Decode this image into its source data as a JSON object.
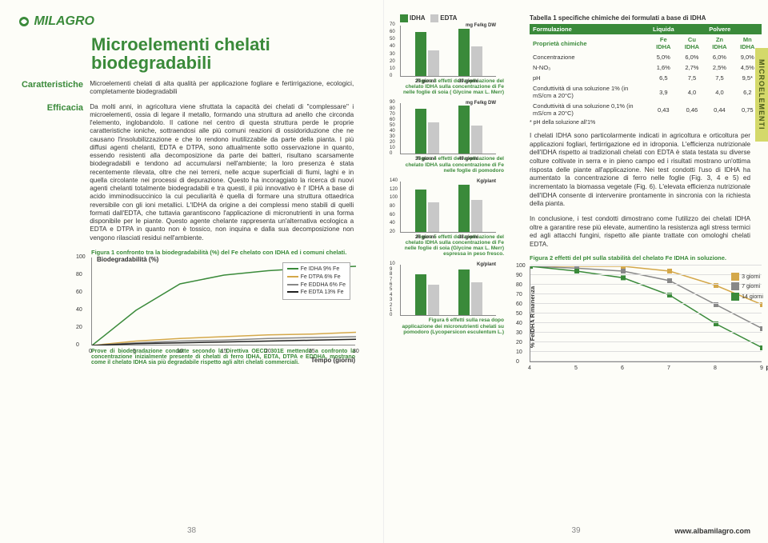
{
  "brand": "MILAGRO",
  "title": "Microelementi chelati biodegradabili",
  "sections": {
    "caratteristiche": {
      "label": "Caratteristiche",
      "text": "Microelementi chelati di alta qualità per applicazione fogliare e fertirrigazione, ecologici, completamente biodegradabili"
    },
    "efficacia": {
      "label": "Efficacia",
      "text": "Da molti anni, in agricoltura viene sfruttata la capacità dei chelati di \"complessare\" i microelementi, ossia di legare il metallo, formando una struttura ad anello che circonda l'elemento, inglobandolo. Il catione nel centro di questa struttura perde le proprie caratteristiche ioniche, sottraendosi alle più comuni reazioni di ossidoriduzione che ne causano l'insolubilizzazione e che lo rendono inutilizzabile da parte della pianta. I più diffusi agenti chelanti, EDTA e DTPA, sono attualmente sotto osservazione in quanto, essendo resistenti alla decomposizione da parte dei batteri, risultano scarsamente biodegradabili e tendono ad accumularsi nell'ambiente; la loro presenza è stata recentemente rilevata, oltre che nei terreni, nelle acque superficiali di fiumi, laghi e in quella circolante nei processi di depurazione. Questo ha incoraggiato la ricerca di nuovi agenti chelanti totalmente biodegradabili e tra questi, il più innovativo è l' IDHA a base di acido imminodisuccinico la cui peculiarità è quella di formare una struttura ottaedrica reversibile con gli ioni metallici. L'IDHA da origine a dei complessi meno stabili di quelli formati dall'EDTA, che tuttavia garantiscono l'applicazione di micronutrienti in una forma disponibile per le piante. Questo agente chelante rappresenta un'alternativa ecologica a EDTA e DTPA in quanto non è tossico, non inquina e dalla sua decomposizione non vengono rilasciati residui nell'ambiente."
    }
  },
  "fig1": {
    "caption": "Figura 1 confronto tra la biodegradabilità (%) del Fe chelato con IDHA ed i comuni chelati.",
    "ylabel": "Biodegradabilità (%)",
    "xlabel": "Tempo (giorni)",
    "yticks": [
      0,
      20,
      40,
      60,
      80,
      100
    ],
    "xticks": [
      0,
      5,
      10,
      15,
      20,
      25,
      30
    ],
    "series": [
      {
        "name": "Fe IDHA 9% Fe",
        "color": "#3a8a3a",
        "values": [
          0,
          40,
          70,
          80,
          85,
          88,
          90
        ]
      },
      {
        "name": "Fe DTPA 6% Fe",
        "color": "#d4a84a",
        "values": [
          0,
          5,
          8,
          10,
          12,
          13,
          15
        ]
      },
      {
        "name": "Fe EDDHA 6% Fe",
        "color": "#888888",
        "values": [
          0,
          3,
          5,
          6,
          8,
          9,
          10
        ]
      },
      {
        "name": "Fe EDTA 13% Fe",
        "color": "#222222",
        "values": [
          0,
          2,
          3,
          4,
          5,
          6,
          7
        ]
      }
    ],
    "footnote": "Prove di biodegradazione condotte secondo la Direttiva OECD 301E mettendo a confronto la concentrazione inizialmente presente di chelati di ferro IDHA, EDTA, DTPA e EDDHA, mostrano come il chelato IDHA sia più degradabile rispetto agli altri chelati commerciali."
  },
  "legend_top": {
    "idha": {
      "label": "IDHA",
      "color": "#3a8a3a"
    },
    "edta": {
      "label": "EDTA",
      "color": "#c8c8c8"
    }
  },
  "fig3": {
    "unit": "mg Fe/kg DW",
    "yticks": [
      0,
      10,
      20,
      30,
      40,
      50,
      60,
      70
    ],
    "xlabels": [
      "29 giorni",
      "39 giorni"
    ],
    "idha": [
      60,
      65
    ],
    "edta": [
      35,
      40
    ],
    "caption": "Figura 3 effetti dell'applicazione del chelato IDHA sulla concentrazione di Fe nelle foglie di soia ( Glycine max L. Merr)"
  },
  "fig4": {
    "unit": "mg Fe/kg DW",
    "yticks": [
      0,
      10,
      20,
      30,
      40,
      50,
      60,
      70,
      80,
      90
    ],
    "xlabels": [
      "39 giorni",
      "49 giorni"
    ],
    "idha": [
      80,
      85
    ],
    "edta": [
      55,
      50
    ],
    "caption": "Figura 4 effetti dell'applicazione del chelato IDHA sulla concentrazione di Fe nelle foglie di pomodoro"
  },
  "fig5": {
    "unit": "Kg/plant",
    "yticks": [
      20,
      40,
      60,
      80,
      100,
      120,
      140
    ],
    "xlabels": [
      "28 giorni",
      "38 giorni"
    ],
    "idha": [
      120,
      130
    ],
    "edta": [
      90,
      95
    ],
    "caption": "Figura 5 effetti dell'applicazione del chelato IDHA sulla concentrazione di Fe nelle foglie di soia (Glycine max L. Merr) espressa in peso fresco."
  },
  "fig6": {
    "unit": "Kg/plant",
    "yticks": [
      0,
      1,
      2,
      3,
      4,
      5,
      6,
      7,
      8,
      9,
      10
    ],
    "xlabels": [
      "",
      ""
    ],
    "idha": [
      8,
      9
    ],
    "edta": [
      6,
      6.5
    ],
    "caption": "Figura 6 effetti sulla resa dopo applicazione dei micronutrienti chelati su pomodoro (Lycopersicon esculentum L.)"
  },
  "table": {
    "title": "Tabella 1 specifiche chimiche dei formulati a base di IDHA",
    "hdr_form": "Formulazione",
    "hdr_liq": "Liquida",
    "hdr_pol": "Polvere",
    "col_prop": "Proprietà chimiche",
    "cols": [
      "Fe IDHA",
      "Cu IDHA",
      "Zn IDHA",
      "Mn IDHA"
    ],
    "rows": [
      {
        "p": "Concentrazione",
        "v": [
          "5,0%",
          "6,0%",
          "6,0%",
          "9,0%"
        ]
      },
      {
        "p": "N-NO₃",
        "v": [
          "1,6%",
          "2,7%",
          "2,5%",
          "4,5%"
        ]
      },
      {
        "p": "pH",
        "v": [
          "6,5",
          "7,5",
          "7,5",
          "9,5*"
        ]
      },
      {
        "p": "Conduttività di una soluzione 1% (in mS/cm a 20°C)",
        "v": [
          "3,9",
          "4,0",
          "4,0",
          "6,2"
        ]
      },
      {
        "p": "Conduttività di una soluzione 0,1% (in mS/cm a 20°C)",
        "v": [
          "0,43",
          "0,46",
          "0,44",
          "0,75"
        ]
      }
    ],
    "note": "* pH della soluzione all'1%"
  },
  "body_right": {
    "p1": "I chelati IDHA sono particolarmente indicati in agricoltura e orticoltura per applicazioni fogliari, fertirrigazione ed in idroponia. L'efficienza nutrizionale dell'IDHA rispetto ai tradizionali chelati con EDTA è stata testata su diverse colture coltivate in serra e in pieno campo ed i risultati mostrano un'ottima risposta delle piante all'applicazione. Nei test condotti l'uso di IDHA ha aumentato la concentrazione di ferro nelle foglie (Fig. 3, 4 e 5) ed incrementato la biomassa vegetale (Fig. 6). L'elevata efficienza nutrizionale dell'IDHA consente di intervenire prontamente in sincronia con la richiesta della pianta.",
    "p2": "In conclusione, i test condotti dimostrano come l'utilizzo dei chelati IDHA oltre a garantire rese più elevate, aumentino la resistenza agli stress termici ed agli attacchi fungini, rispetto alle piante trattate con omologhi chelati EDTA."
  },
  "fig2": {
    "caption": "Figura 2 effetti del pH sulla stabilità del chelato Fe IDHA in soluzione.",
    "ylabel": "% FeIDHA Rimanenza",
    "xlabel": "pH",
    "yticks": [
      0,
      10,
      20,
      30,
      40,
      50,
      60,
      70,
      80,
      90,
      100
    ],
    "xticks": [
      4,
      5,
      6,
      7,
      8,
      9
    ],
    "series": [
      {
        "name": "3 giorni",
        "color": "#d4a84a",
        "values": [
          100,
          100,
          100,
          95,
          80,
          60
        ]
      },
      {
        "name": "7 giorni",
        "color": "#888888",
        "values": [
          100,
          98,
          95,
          85,
          60,
          35
        ]
      },
      {
        "name": "14 giorni",
        "color": "#3a8a3a",
        "values": [
          100,
          95,
          88,
          70,
          40,
          15
        ]
      }
    ]
  },
  "side_tab": "MICROELEMENTI",
  "url": "www.albamilagro.com",
  "page_left": "38",
  "page_right": "39"
}
